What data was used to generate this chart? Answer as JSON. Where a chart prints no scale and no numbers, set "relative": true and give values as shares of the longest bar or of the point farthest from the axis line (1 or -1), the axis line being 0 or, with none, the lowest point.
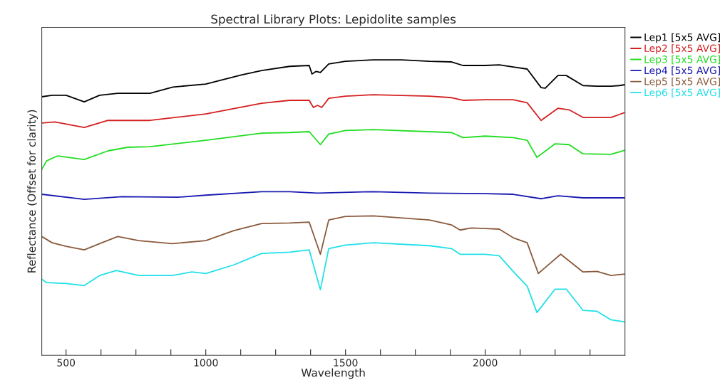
{
  "chart_data": {
    "type": "line",
    "title": "Spectral Library Plots: Lepidolite samples",
    "xlabel": "Wavelength",
    "ylabel": "Reflectance (Offset for clarity)",
    "relative": true,
    "legend": "top right",
    "grid": false,
    "xlim": [
      413,
      2500
    ],
    "xticks": [
      500,
      {
        "value": 625,
        "label": null
      },
      {
        "value": 750,
        "label": null
      },
      {
        "value": 875,
        "label": null
      },
      1000,
      {
        "value": 1125,
        "label": null
      },
      {
        "value": 1250,
        "label": null
      },
      {
        "value": 1375,
        "label": null
      },
      1500,
      {
        "value": 1625,
        "label": null
      },
      {
        "value": 1750,
        "label": null
      },
      {
        "value": 1875,
        "label": null
      },
      2000,
      {
        "value": 2125,
        "label": null
      },
      {
        "value": 2250,
        "label": null
      },
      {
        "value": 2375,
        "label": null
      }
    ],
    "series": [
      {
        "name": "Lep1 [5x5 AVG]",
        "color": "#000000",
        "x": [
          413,
          450,
          500,
          565,
          620,
          685,
          800,
          882,
          1000,
          1127,
          1200,
          1300,
          1370,
          1380,
          1395,
          1410,
          1440,
          1500,
          1600,
          1700,
          1800,
          1880,
          1920,
          2000,
          2050,
          2100,
          2150,
          2200,
          2215,
          2260,
          2290,
          2350,
          2400,
          2450,
          2480,
          2500
        ],
        "values": [
          0.875,
          0.88,
          0.88,
          0.858,
          0.88,
          0.887,
          0.887,
          0.908,
          0.918,
          0.949,
          0.964,
          0.978,
          0.981,
          0.952,
          0.961,
          0.957,
          0.986,
          0.995,
          1.0,
          1.0,
          0.995,
          0.993,
          0.981,
          0.981,
          0.983,
          0.976,
          0.969,
          0.906,
          0.904,
          0.947,
          0.947,
          0.913,
          0.911,
          0.911,
          0.913,
          0.916
        ]
      },
      {
        "name": "Lep2 [5x5 AVG]",
        "color": "#d42020",
        "x": [
          413,
          460,
          565,
          650,
          800,
          1000,
          1200,
          1300,
          1370,
          1385,
          1400,
          1415,
          1440,
          1500,
          1600,
          1800,
          1880,
          1920,
          2000,
          2100,
          2150,
          2200,
          2260,
          2300,
          2350,
          2450,
          2500
        ],
        "values": [
          0.786,
          0.79,
          0.771,
          0.795,
          0.795,
          0.817,
          0.853,
          0.863,
          0.863,
          0.839,
          0.846,
          0.839,
          0.87,
          0.877,
          0.882,
          0.877,
          0.872,
          0.863,
          0.865,
          0.865,
          0.855,
          0.795,
          0.836,
          0.831,
          0.805,
          0.805,
          0.822
        ]
      },
      {
        "name": "Lep3 [5x5 AVG]",
        "color": "#22dd22",
        "x": [
          413,
          430,
          470,
          565,
          650,
          720,
          800,
          1000,
          1200,
          1300,
          1370,
          1410,
          1440,
          1500,
          1600,
          1880,
          1920,
          2000,
          2100,
          2150,
          2185,
          2250,
          2300,
          2350,
          2450,
          2500
        ],
        "values": [
          0.629,
          0.658,
          0.675,
          0.663,
          0.692,
          0.704,
          0.706,
          0.728,
          0.752,
          0.754,
          0.757,
          0.713,
          0.749,
          0.761,
          0.764,
          0.754,
          0.737,
          0.742,
          0.737,
          0.728,
          0.67,
          0.716,
          0.713,
          0.682,
          0.68,
          0.694
        ]
      },
      {
        "name": "Lep4 [5x5 AVG]",
        "color": "#1a1ab0",
        "x": [
          413,
          565,
          700,
          900,
          1000,
          1200,
          1300,
          1400,
          1600,
          1800,
          2000,
          2100,
          2200,
          2260,
          2350,
          2500
        ],
        "values": [
          0.545,
          0.528,
          0.537,
          0.535,
          0.542,
          0.554,
          0.554,
          0.549,
          0.554,
          0.549,
          0.547,
          0.545,
          0.53,
          0.54,
          0.533,
          0.533
        ]
      },
      {
        "name": "Lep5 [5x5 AVG]",
        "color": "#8b5a3c",
        "x": [
          413,
          450,
          500,
          565,
          620,
          685,
          760,
          880,
          1000,
          1100,
          1200,
          1300,
          1370,
          1410,
          1440,
          1500,
          1600,
          1800,
          1880,
          1910,
          1950,
          2000,
          2050,
          2100,
          2150,
          2190,
          2270,
          2350,
          2400,
          2450,
          2500
        ],
        "values": [
          0.402,
          0.381,
          0.369,
          0.357,
          0.378,
          0.402,
          0.388,
          0.378,
          0.388,
          0.422,
          0.446,
          0.448,
          0.451,
          0.342,
          0.458,
          0.47,
          0.472,
          0.458,
          0.441,
          0.424,
          0.431,
          0.429,
          0.427,
          0.398,
          0.381,
          0.277,
          0.342,
          0.282,
          0.284,
          0.27,
          0.275
        ]
      },
      {
        "name": "Lep6 [5x5 AVG]",
        "color": "#22e0e8",
        "x": [
          413,
          430,
          500,
          565,
          620,
          680,
          760,
          880,
          950,
          1000,
          1100,
          1200,
          1300,
          1370,
          1410,
          1440,
          1500,
          1600,
          1800,
          1880,
          1910,
          2000,
          2050,
          2100,
          2150,
          2185,
          2250,
          2290,
          2350,
          2400,
          2450,
          2500
        ],
        "values": [
          0.258,
          0.246,
          0.243,
          0.236,
          0.27,
          0.287,
          0.27,
          0.27,
          0.282,
          0.277,
          0.306,
          0.345,
          0.349,
          0.357,
          0.222,
          0.361,
          0.373,
          0.381,
          0.371,
          0.361,
          0.342,
          0.342,
          0.337,
          0.284,
          0.234,
          0.145,
          0.224,
          0.224,
          0.152,
          0.149,
          0.12,
          0.113
        ]
      }
    ]
  }
}
